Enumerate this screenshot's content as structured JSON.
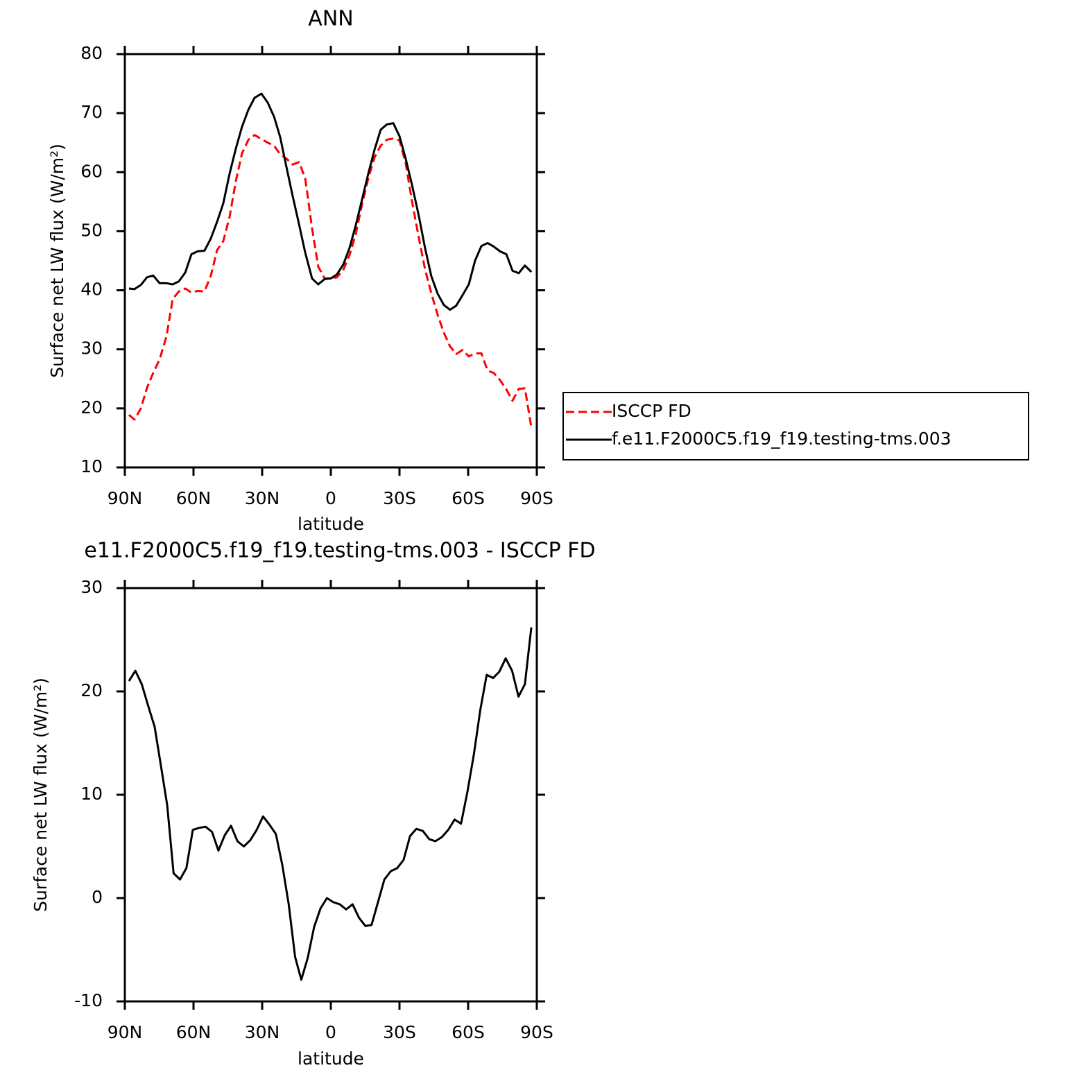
{
  "chart_data": [
    {
      "type": "line",
      "title": "ANN",
      "xlabel": "latitude",
      "ylabel": "Surface net LW flux (W/m²)",
      "xlim": [
        90,
        -90
      ],
      "xticks": [
        {
          "value": 90,
          "label": "90N"
        },
        {
          "value": 60,
          "label": "60N"
        },
        {
          "value": 30,
          "label": "30N"
        },
        0,
        {
          "value": -30,
          "label": "30S"
        },
        {
          "value": -60,
          "label": "60S"
        },
        {
          "value": -90,
          "label": "90S"
        }
      ],
      "ylim": [
        10,
        80
      ],
      "yticks": [
        10,
        20,
        30,
        40,
        50,
        60,
        70,
        80
      ],
      "legend": "right",
      "x": [
        88.2,
        85.8,
        83,
        80.3,
        77.6,
        74.8,
        71.8,
        69.1,
        66.4,
        63.6,
        60.9,
        58.2,
        55.2,
        52.4,
        49.7,
        47,
        44.2,
        41.5,
        38.8,
        36,
        33.3,
        30.3,
        27.6,
        24.8,
        22.1,
        19.4,
        16.7,
        13.9,
        11.2,
        8.2,
        5.5,
        2.7,
        0,
        -2.7,
        -5.5,
        -8.2,
        -10.9,
        -13.6,
        -16.4,
        -19.1,
        -21.8,
        -24.5,
        -27.3,
        -30,
        -32.7,
        -35.5,
        -38.5,
        -41.2,
        -43.9,
        -46.7,
        -49.4,
        -52.1,
        -54.8,
        -57.6,
        -60.3,
        -63,
        -65.8,
        -68.5,
        -71.2,
        -73.9,
        -76.7,
        -79.4,
        -82.1,
        -84.8,
        -87.6
      ],
      "series": [
        {
          "name": "ISCCP FD",
          "color": "#ff0000",
          "dashed": true,
          "values": [
            18.9,
            18.1,
            20.0,
            23.5,
            26.0,
            28.3,
            32.2,
            38.5,
            39.8,
            40.3,
            39.6,
            39.9,
            39.8,
            42.5,
            46.8,
            48.3,
            52.5,
            58.5,
            63.2,
            65.5,
            66.3,
            65.6,
            65.0,
            64.5,
            63.0,
            62.3,
            61.3,
            61.7,
            59.0,
            50.5,
            44.0,
            42.0,
            42.0,
            42.2,
            43.5,
            46.0,
            49.5,
            54.5,
            59.0,
            62.5,
            64.5,
            65.5,
            65.7,
            65.4,
            61.5,
            55.0,
            48.8,
            43.5,
            39.5,
            35.8,
            32.8,
            30.5,
            29.2,
            29.9,
            28.8,
            29.3,
            29.3,
            26.4,
            26.0,
            24.8,
            23.2,
            21.3,
            23.3,
            23.4,
            16.8
          ]
        },
        {
          "name": "f.e11.F2000C5.f19_f19.testing-tms.003",
          "color": "#000000",
          "dashed": false,
          "values": [
            40.3,
            40.2,
            40.9,
            42.2,
            42.5,
            41.2,
            41.2,
            41.0,
            41.5,
            43.0,
            46.1,
            46.6,
            46.7,
            48.8,
            51.6,
            54.7,
            59.8,
            64.0,
            67.7,
            70.6,
            72.6,
            73.3,
            71.8,
            69.4,
            65.9,
            60.9,
            56.0,
            51.2,
            46.4,
            42.0,
            41.0,
            41.9,
            42.0,
            42.7,
            44.4,
            47.2,
            51.0,
            55.3,
            59.8,
            63.8,
            67.2,
            68.1,
            68.3,
            66.1,
            62.3,
            57.8,
            52.5,
            47.1,
            42.4,
            39.4,
            37.5,
            36.7,
            37.4,
            39.2,
            41.0,
            45.0,
            47.5,
            48.0,
            47.4,
            46.6,
            46.1,
            43.3,
            42.9,
            44.2,
            43.1
          ]
        }
      ]
    },
    {
      "type": "line",
      "title": "e11.F2000C5.f19_f19.testing-tms.003 - ISCCP FD",
      "xlabel": "latitude",
      "ylabel": "Surface net LW flux (W/m²)",
      "xlim": [
        90,
        -90
      ],
      "xticks": [
        {
          "value": 90,
          "label": "90N"
        },
        {
          "value": 60,
          "label": "60N"
        },
        {
          "value": 30,
          "label": "30N"
        },
        0,
        {
          "value": -30,
          "label": "30S"
        },
        {
          "value": -60,
          "label": "60S"
        },
        {
          "value": -90,
          "label": "90S"
        }
      ],
      "ylim": [
        -10,
        30
      ],
      "yticks": [
        -10,
        0,
        10,
        20,
        30
      ],
      "color": "#000000",
      "x": [
        88.2,
        85.4,
        82.6,
        79.8,
        77.0,
        74.3,
        71.5,
        68.7,
        65.9,
        63.1,
        60.3,
        57.5,
        54.7,
        51.9,
        49.1,
        46.3,
        43.6,
        40.8,
        38.0,
        35.2,
        32.4,
        29.6,
        26.8,
        24.0,
        21.2,
        18.4,
        15.6,
        12.9,
        10.1,
        7.3,
        4.5,
        1.7,
        -1.1,
        -3.9,
        -6.7,
        -9.5,
        -12.3,
        -15.1,
        -17.8,
        -20.6,
        -23.4,
        -26.2,
        -29.0,
        -31.8,
        -34.6,
        -37.4,
        -40.2,
        -43.0,
        -45.7,
        -48.5,
        -51.3,
        -54.1,
        -56.9,
        -59.7,
        -62.5,
        -65.3,
        -68.1,
        -70.9,
        -73.6,
        -76.4,
        -79.2,
        -82.0,
        -84.8,
        -87.6
      ],
      "values": [
        21.0,
        22.0,
        20.7,
        18.6,
        16.6,
        12.9,
        9.0,
        2.4,
        1.8,
        2.9,
        6.6,
        6.8,
        6.9,
        6.4,
        4.6,
        6.1,
        7.0,
        5.5,
        5.0,
        5.6,
        6.6,
        7.9,
        7.1,
        6.2,
        3.2,
        -0.6,
        -5.7,
        -7.9,
        -5.8,
        -2.8,
        -1.0,
        0.0,
        -0.4,
        -0.6,
        -1.1,
        -0.6,
        -1.9,
        -2.7,
        -2.6,
        -0.4,
        1.8,
        2.6,
        2.9,
        3.7,
        6.0,
        6.7,
        6.5,
        5.7,
        5.5,
        5.9,
        6.6,
        7.6,
        7.2,
        10.3,
        13.9,
        18.2,
        21.6,
        21.3,
        21.9,
        23.2,
        22.0,
        19.5,
        20.7,
        26.2
      ]
    }
  ]
}
